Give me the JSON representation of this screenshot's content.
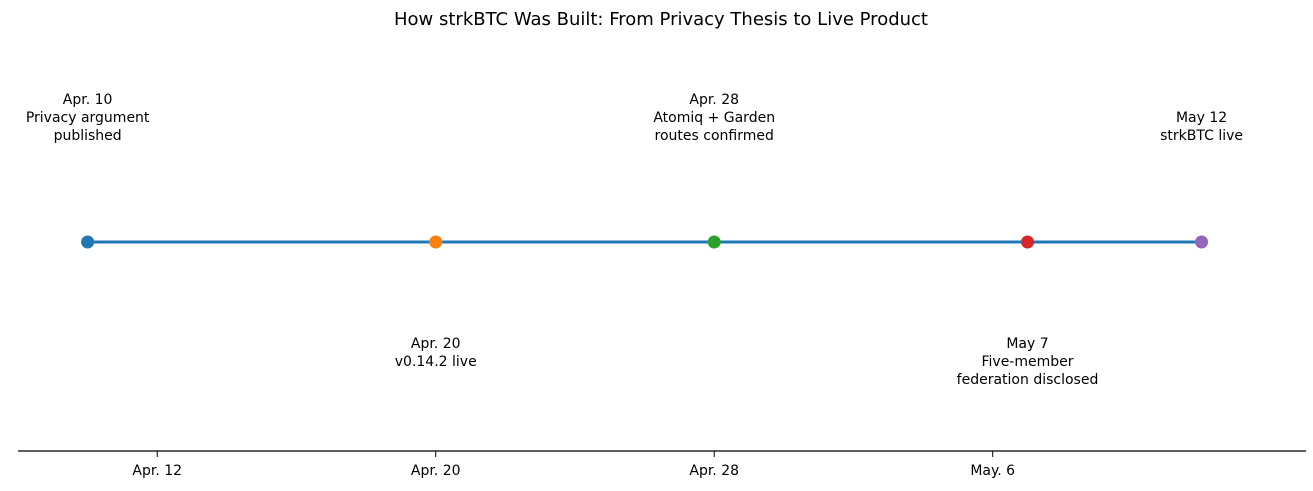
{
  "chart_data": {
    "type": "line",
    "title": "How strkBTC Was Built: From Privacy Thesis to Live Product",
    "xlabel": "",
    "ylabel": "",
    "x_axis": {
      "type": "date",
      "range": [
        "2026-04-08",
        "2026-05-15"
      ],
      "ticks": [
        {
          "date": "2026-04-12",
          "label": "Apr. 12"
        },
        {
          "date": "2026-04-20",
          "label": "Apr. 20"
        },
        {
          "date": "2026-04-28",
          "label": "Apr. 28"
        },
        {
          "date": "2026-05-06",
          "label": "May. 6"
        }
      ]
    },
    "grid": false,
    "line_color": "#1f77b4",
    "events": [
      {
        "date": "2026-04-10",
        "date_label": "Apr. 10",
        "text": [
          "Privacy argument",
          "published"
        ],
        "label_side": "above",
        "color": "#1f77b4"
      },
      {
        "date": "2026-04-20",
        "date_label": "Apr. 20",
        "text": [
          "v0.14.2 live"
        ],
        "label_side": "below",
        "color": "#ff7f0e"
      },
      {
        "date": "2026-04-28",
        "date_label": "Apr. 28",
        "text": [
          "Atomiq + Garden",
          "routes confirmed"
        ],
        "label_side": "above",
        "color": "#2ca02c"
      },
      {
        "date": "2026-05-07",
        "date_label": "May 7",
        "text": [
          "Five-member",
          "federation disclosed"
        ],
        "label_side": "below",
        "color": "#d62728"
      },
      {
        "date": "2026-05-12",
        "date_label": "May 12",
        "text": [
          "strkBTC live"
        ],
        "label_side": "above",
        "color": "#9467bd"
      }
    ]
  }
}
